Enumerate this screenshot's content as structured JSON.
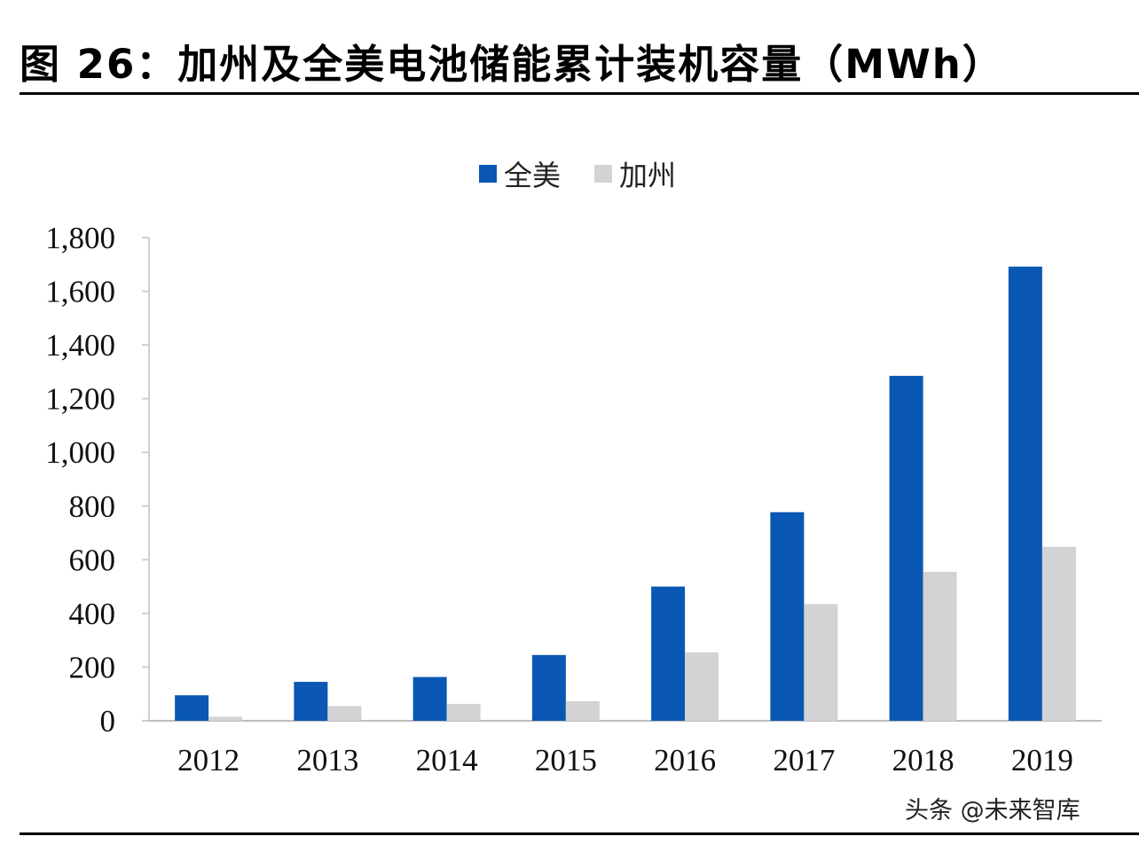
{
  "header": {
    "title": "图 26：加州及全美电池储能累计装机容量（MWh）"
  },
  "watermark": "头条 @未来智库",
  "colors": {
    "us": "#0a57b4",
    "ca": "#d3d3d6"
  },
  "chart_data": {
    "type": "bar",
    "categories": [
      "2012",
      "2013",
      "2014",
      "2015",
      "2016",
      "2017",
      "2018",
      "2019"
    ],
    "series": [
      {
        "name": "全美",
        "values": [
          95,
          145,
          163,
          245,
          500,
          777,
          1285,
          1692
        ]
      },
      {
        "name": "加州",
        "values": [
          15,
          55,
          63,
          73,
          255,
          435,
          555,
          648
        ]
      }
    ],
    "ylim": [
      0,
      1800
    ],
    "yticks": [
      0,
      200,
      400,
      600,
      800,
      1000,
      1200,
      1400,
      1600,
      1800
    ],
    "ytick_labels": [
      "0",
      "200",
      "400",
      "600",
      "800",
      "1,000",
      "1,200",
      "1,400",
      "1,600",
      "1,800"
    ],
    "legend_position": "top-center",
    "grid": false
  }
}
